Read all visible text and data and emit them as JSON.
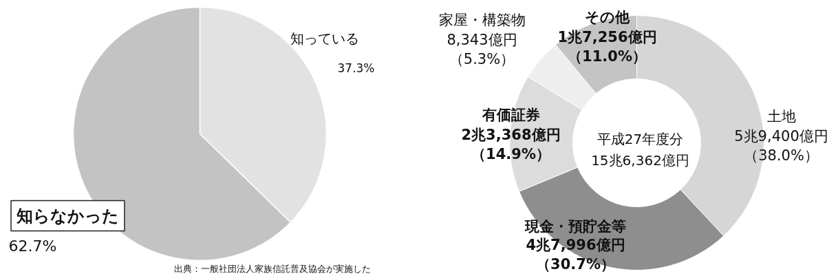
{
  "chart_data": [
    {
      "type": "pie",
      "categories": [
        "知っている",
        "知らなかった"
      ],
      "values": [
        37.3,
        62.7
      ],
      "colors": [
        "#e2e2e2",
        "#c3c3c3"
      ],
      "value_labels": [
        "37.3%",
        "62.7%"
      ],
      "annotations": [
        "出典：一般社団法人家族信託普及協会が実施した"
      ]
    },
    {
      "type": "donut",
      "categories": [
        "土地",
        "現金・預貯金等",
        "有価証券",
        "家屋・構築物",
        "その他"
      ],
      "values": [
        38.0,
        30.7,
        14.9,
        5.3,
        11.0
      ],
      "colors": [
        "#d6d6d6",
        "#8e8e8e",
        "#dcdcdc",
        "#eeeeee",
        "#c4c4c4"
      ],
      "value_labels": [
        "5兆9,400億円（38.0%）",
        "4兆7,996億円（30.7%）",
        "2兆3,368億円（14.9%）",
        "8,343億円（5.3%）",
        "1兆7,256億円（11.0%）"
      ],
      "annotations": [
        "平成27年度分",
        "15兆6,362億円"
      ]
    }
  ]
}
